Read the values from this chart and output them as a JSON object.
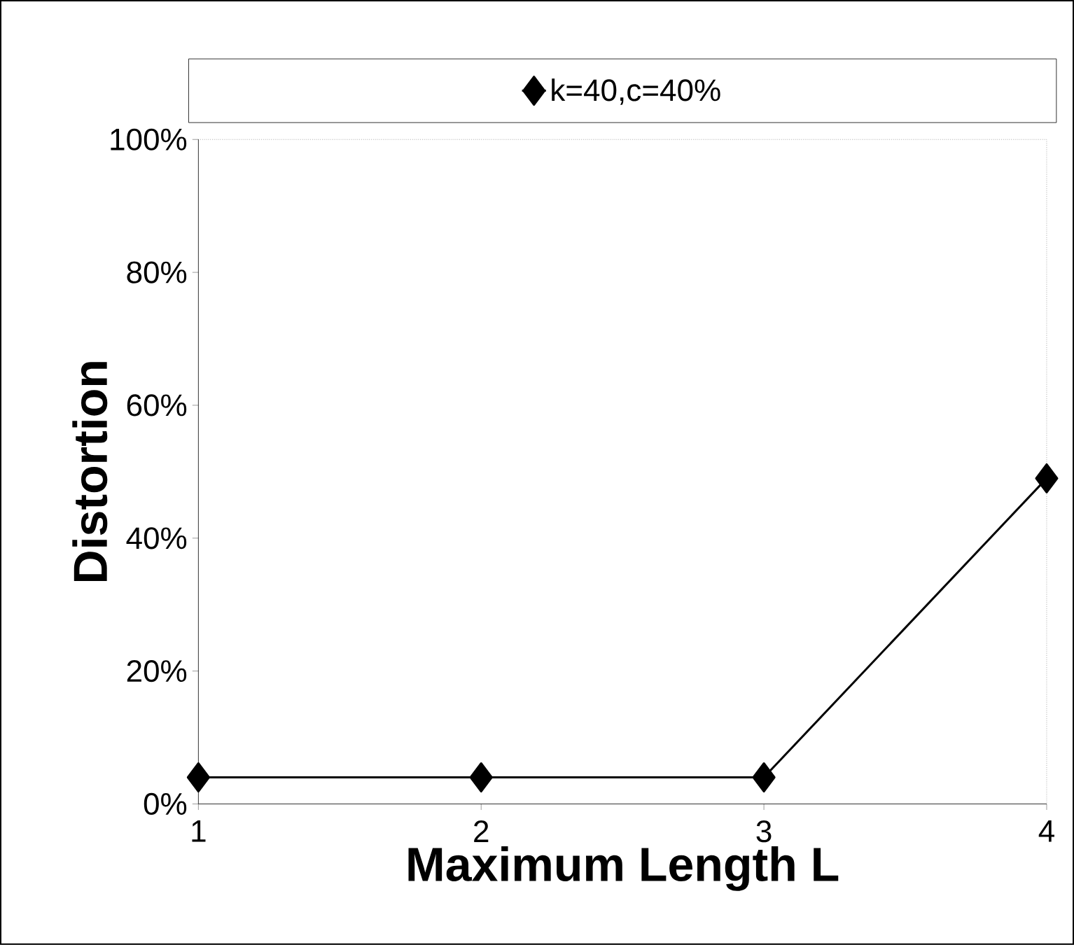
{
  "chart_data": {
    "type": "line",
    "xlabel": "Maximum Length L",
    "ylabel": "Distortion",
    "x": [
      1,
      2,
      3,
      4
    ],
    "series": [
      {
        "name": "k=40,c=40%",
        "color": "#000000",
        "values": [
          4,
          4,
          4,
          49
        ]
      }
    ],
    "xlim": [
      1,
      4
    ],
    "xticks": [
      1,
      2,
      3,
      4
    ],
    "ylim": [
      0,
      100
    ],
    "yticks": [
      {
        "value": 0,
        "label": "0%"
      },
      {
        "value": 20,
        "label": "20%"
      },
      {
        "value": 40,
        "label": "40%"
      },
      {
        "value": 60,
        "label": "60%"
      },
      {
        "value": 80,
        "label": "80%"
      },
      {
        "value": 100,
        "label": "100%"
      }
    ],
    "legend": "top",
    "marker": "diamond",
    "line_style": "solid",
    "grid": false
  }
}
